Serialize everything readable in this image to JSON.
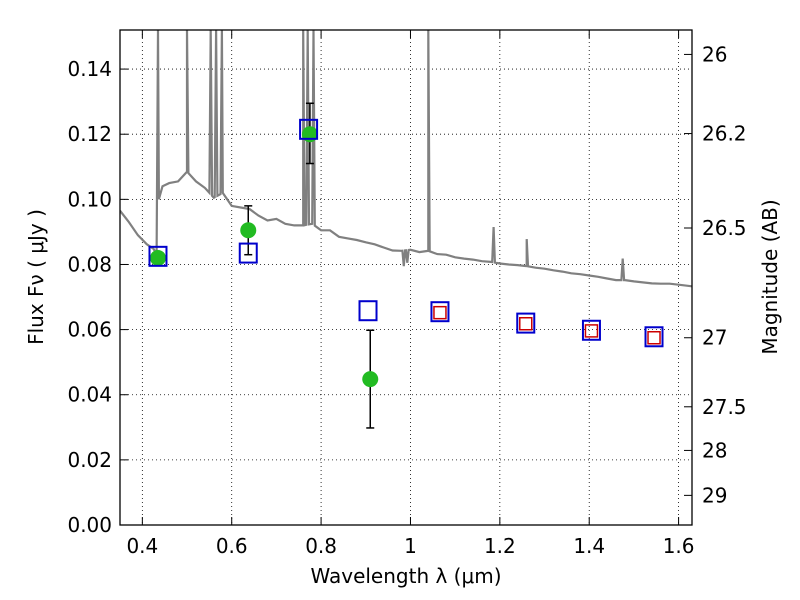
{
  "chart_data": {
    "type": "scatter",
    "xlabel": "Wavelength  λ (μm)",
    "ylabel": "Flux  Fν  ( μJy )",
    "y2label": "Magnitude (AB)",
    "xlim": [
      0.35,
      1.63
    ],
    "ylim": [
      0.0,
      0.152
    ],
    "grid": true,
    "grid_style": "dotted",
    "x_ticks": [
      0.4,
      0.6,
      0.8,
      1.0,
      1.2,
      1.4,
      1.6
    ],
    "x_tick_labels": [
      "0.4",
      "0.6",
      "0.8",
      "1",
      "1.2",
      "1.4",
      "1.6"
    ],
    "y_ticks": [
      0.0,
      0.02,
      0.04,
      0.06,
      0.08,
      0.1,
      0.12,
      0.14
    ],
    "y_tick_labels": [
      "0.00",
      "0.02",
      "0.04",
      "0.06",
      "0.08",
      "0.10",
      "0.12",
      "0.14"
    ],
    "y2_ticks": [
      {
        "mag": "26",
        "flux": 0.1445
      },
      {
        "mag": "26.2",
        "flux": 0.1202
      },
      {
        "mag": "26.5",
        "flux": 0.0912
      },
      {
        "mag": "27",
        "flux": 0.0575
      },
      {
        "mag": "27.5",
        "flux": 0.0363
      },
      {
        "mag": "28",
        "flux": 0.0229
      },
      {
        "mag": "29",
        "flux": 0.0091
      }
    ],
    "colors": {
      "spectrum": "#808080",
      "observed": "#22bb22",
      "model_blue": "#0000cc",
      "model_red": "#cc0000",
      "errorbar": "#000000"
    },
    "series": [
      {
        "kind": "line",
        "points": [
          [
            0.35,
            0.0965
          ],
          [
            0.37,
            0.093
          ],
          [
            0.39,
            0.089
          ],
          [
            0.41,
            0.0862
          ],
          [
            0.425,
            0.0848
          ],
          [
            0.432,
            0.083
          ],
          [
            0.437,
            0.1
          ],
          [
            0.445,
            0.104
          ],
          [
            0.46,
            0.105
          ],
          [
            0.48,
            0.1055
          ],
          [
            0.5,
            0.1085
          ],
          [
            0.52,
            0.1055
          ],
          [
            0.54,
            0.1035
          ],
          [
            0.56,
            0.1005
          ],
          [
            0.58,
            0.102
          ],
          [
            0.6,
            0.098
          ],
          [
            0.62,
            0.0975
          ],
          [
            0.64,
            0.097
          ],
          [
            0.66,
            0.095
          ],
          [
            0.68,
            0.0935
          ],
          [
            0.7,
            0.094
          ],
          [
            0.72,
            0.0925
          ],
          [
            0.74,
            0.092
          ],
          [
            0.76,
            0.092
          ],
          [
            0.78,
            0.0925
          ],
          [
            0.8,
            0.0905
          ],
          [
            0.82,
            0.0905
          ],
          [
            0.84,
            0.0885
          ],
          [
            0.86,
            0.088
          ],
          [
            0.88,
            0.0875
          ],
          [
            0.9,
            0.0868
          ],
          [
            0.92,
            0.0862
          ],
          [
            0.94,
            0.0852
          ],
          [
            0.96,
            0.0843
          ],
          [
            0.98,
            0.0842
          ],
          [
            1.0,
            0.0845
          ],
          [
            1.02,
            0.0838
          ],
          [
            1.04,
            0.0842
          ],
          [
            1.06,
            0.0832
          ],
          [
            1.08,
            0.083
          ],
          [
            1.1,
            0.0822
          ],
          [
            1.12,
            0.0818
          ],
          [
            1.14,
            0.0815
          ],
          [
            1.16,
            0.081
          ],
          [
            1.18,
            0.0808
          ],
          [
            1.2,
            0.0803
          ],
          [
            1.22,
            0.08
          ],
          [
            1.24,
            0.0798
          ],
          [
            1.26,
            0.0795
          ],
          [
            1.28,
            0.079
          ],
          [
            1.3,
            0.0787
          ],
          [
            1.32,
            0.0782
          ],
          [
            1.34,
            0.0778
          ],
          [
            1.36,
            0.0773
          ],
          [
            1.38,
            0.077
          ],
          [
            1.4,
            0.0766
          ],
          [
            1.42,
            0.0762
          ],
          [
            1.44,
            0.0757
          ],
          [
            1.46,
            0.0752
          ],
          [
            1.48,
            0.0752
          ],
          [
            1.5,
            0.0748
          ],
          [
            1.52,
            0.0745
          ],
          [
            1.54,
            0.0742
          ],
          [
            1.56,
            0.0741
          ],
          [
            1.58,
            0.0741
          ],
          [
            1.6,
            0.0738
          ],
          [
            1.63,
            0.0733
          ]
        ],
        "emission_lines": [
          {
            "x": 0.435,
            "peak": 0.152
          },
          {
            "x": 0.5,
            "peak": 0.152
          },
          {
            "x": 0.553,
            "peak": 0.152
          },
          {
            "x": 0.565,
            "peak": 0.152
          },
          {
            "x": 0.578,
            "peak": 0.152
          },
          {
            "x": 0.76,
            "peak": 0.152
          },
          {
            "x": 0.77,
            "peak": 0.152
          },
          {
            "x": 0.783,
            "peak": 0.152
          },
          {
            "x": 1.04,
            "peak": 0.152
          },
          {
            "x": 1.186,
            "peak": 0.0915
          },
          {
            "x": 1.26,
            "peak": 0.0878
          },
          {
            "x": 1.475,
            "peak": 0.0818
          }
        ],
        "absorption_lines": [
          {
            "x": 0.985,
            "dip": 0.0795
          },
          {
            "x": 0.993,
            "dip": 0.0805
          }
        ]
      },
      {
        "kind": "observed",
        "points": [
          {
            "x": 0.435,
            "y": 0.082
          },
          {
            "x": 0.637,
            "y": 0.0905,
            "err_low": 0.083,
            "err_high": 0.098
          },
          {
            "x": 0.775,
            "y": 0.12,
            "err_low": 0.111,
            "err_high": 0.1295
          },
          {
            "x": 0.91,
            "y": 0.0448,
            "err_low": 0.0298,
            "err_high": 0.0598
          }
        ]
      },
      {
        "kind": "model_blue",
        "points": [
          {
            "x": 0.435,
            "y": 0.0825
          },
          {
            "x": 0.637,
            "y": 0.0835
          },
          {
            "x": 0.772,
            "y": 0.1215
          },
          {
            "x": 0.905,
            "y": 0.0658
          },
          {
            "x": 1.066,
            "y": 0.0655
          },
          {
            "x": 1.258,
            "y": 0.062
          },
          {
            "x": 1.405,
            "y": 0.0598
          },
          {
            "x": 1.545,
            "y": 0.0578
          }
        ]
      },
      {
        "kind": "model_red",
        "points": [
          {
            "x": 1.066,
            "y": 0.0652
          },
          {
            "x": 1.258,
            "y": 0.0618
          },
          {
            "x": 1.405,
            "y": 0.0596
          },
          {
            "x": 1.545,
            "y": 0.0575
          }
        ]
      }
    ]
  }
}
